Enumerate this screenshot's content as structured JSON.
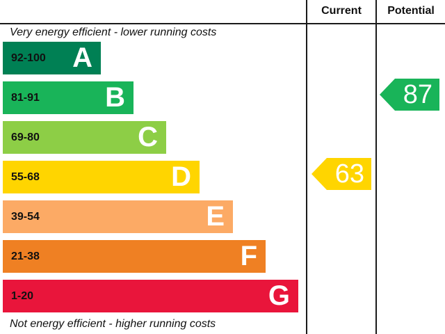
{
  "header": {
    "current": "Current",
    "potential": "Potential"
  },
  "captions": {
    "top": "Very energy efficient - lower running costs",
    "bottom": "Not energy efficient - higher running costs"
  },
  "bands": [
    {
      "range": "92-100",
      "letter": "A",
      "color": "#008054"
    },
    {
      "range": "81-91",
      "letter": "B",
      "color": "#19b459"
    },
    {
      "range": "69-80",
      "letter": "C",
      "color": "#8dce46"
    },
    {
      "range": "55-68",
      "letter": "D",
      "color": "#ffd500"
    },
    {
      "range": "39-54",
      "letter": "E",
      "color": "#fcaa65"
    },
    {
      "range": "21-38",
      "letter": "F",
      "color": "#ef8023"
    },
    {
      "range": "1-20",
      "letter": "G",
      "color": "#e9153b"
    }
  ],
  "current": {
    "value": "63",
    "band": "D",
    "color": "#ffd500"
  },
  "potential": {
    "value": "87",
    "band": "B",
    "color": "#19b459"
  }
}
